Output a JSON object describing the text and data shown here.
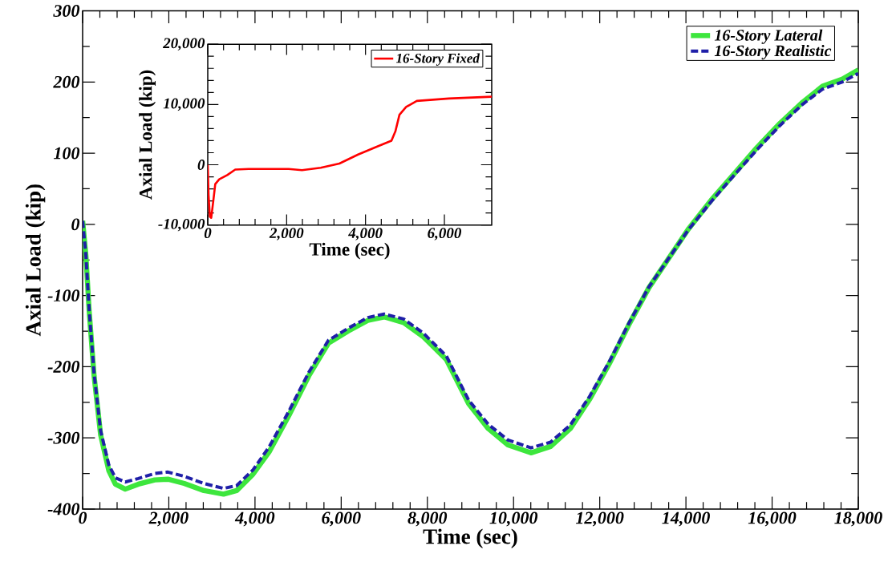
{
  "chart_data": [
    {
      "type": "line",
      "xlabel": "Time (sec)",
      "ylabel": "Axial Load (kip)",
      "xlim": [
        0,
        18000
      ],
      "ylim": [
        -400,
        300
      ],
      "xticks": [
        0,
        {
          "value": 2000,
          "label": "2,000"
        },
        {
          "value": 4000,
          "label": "4,000"
        },
        {
          "value": 6000,
          "label": "6,000"
        },
        {
          "value": 8000,
          "label": "8,000"
        },
        {
          "value": 10000,
          "label": "10,000"
        },
        {
          "value": 12000,
          "label": "12,000"
        },
        {
          "value": 14000,
          "label": "14,000"
        },
        {
          "value": 16000,
          "label": "16,000"
        },
        {
          "value": 18000,
          "label": "18,000"
        }
      ],
      "yticks": [
        -400,
        -300,
        -200,
        -100,
        0,
        100,
        200,
        300
      ],
      "grid": false,
      "legend": "top right",
      "x": [
        0,
        76,
        152,
        266,
        418,
        608,
        760,
        989,
        1293,
        1673,
        1977,
        2357,
        2814,
        3270,
        3574,
        3954,
        4335,
        4791,
        5247,
        5703,
        6160,
        6616,
        6996,
        7452,
        7909,
        8441,
        8958,
        9414,
        9871,
        10403,
        10859,
        11316,
        11772,
        12228,
        12684,
        13141,
        13597,
        14053,
        14586,
        15118,
        15650,
        16183,
        16715,
        17171,
        17627,
        18000
      ],
      "series": [
        {
          "name": "16-Story Lateral",
          "color": "#3de63d",
          "line_style": "solid",
          "values": [
            5,
            -44,
            -122,
            -213,
            -296,
            -346,
            -365,
            -372,
            -365,
            -359,
            -358,
            -364,
            -374,
            -379,
            -374,
            -351,
            -319,
            -268,
            -213,
            -167,
            -150,
            -135,
            -130,
            -138,
            -158,
            -190,
            -252,
            -287,
            -310,
            -321,
            -312,
            -287,
            -245,
            -195,
            -140,
            -89,
            -48,
            -7,
            34,
            71,
            108,
            142,
            172,
            194,
            204,
            217
          ]
        },
        {
          "name": "16-Story Realistic",
          "color": "#1f1fa8",
          "line_style": "dashed",
          "values": [
            5,
            -44,
            -120,
            -210,
            -290,
            -338,
            -356,
            -362,
            -357,
            -350,
            -348,
            -354,
            -364,
            -371,
            -367,
            -345,
            -312,
            -262,
            -208,
            -163,
            -146,
            -131,
            -126,
            -133,
            -153,
            -185,
            -247,
            -281,
            -303,
            -314,
            -306,
            -282,
            -241,
            -192,
            -138,
            -88,
            -48,
            -8,
            32,
            69,
            105,
            139,
            169,
            190,
            200,
            212
          ]
        }
      ]
    },
    {
      "type": "line",
      "xlabel": "Time (sec)",
      "ylabel": "Axial Load (kip)",
      "xlim": [
        0,
        7200
      ],
      "ylim": [
        -10000,
        20000
      ],
      "xticks": [
        0,
        {
          "value": 2000,
          "label": "2,000"
        },
        {
          "value": 4000,
          "label": "4,000"
        },
        {
          "value": 6000,
          "label": "6,000"
        }
      ],
      "yticks": [
        {
          "value": -10000,
          "label": "-10,000"
        },
        0,
        {
          "value": 10000,
          "label": "10,000"
        },
        {
          "value": 20000,
          "label": "20,000"
        }
      ],
      "grid": false,
      "legend": "top right",
      "x": [
        0,
        20,
        54,
        88,
        142,
        190,
        291,
        494,
        697,
        1036,
        2051,
        2390,
        2864,
        3338,
        3812,
        4286,
        4658,
        4760,
        4861,
        5030,
        5301,
        6113,
        7200
      ],
      "series": [
        {
          "name": "16-Story Fixed",
          "color": "#ff0000",
          "line_style": "solid",
          "values": [
            0,
            -5000,
            -8600,
            -8800,
            -5900,
            -3200,
            -2400,
            -1700,
            -800,
            -700,
            -700,
            -900,
            -500,
            200,
            1700,
            3000,
            4000,
            5600,
            8300,
            9600,
            10600,
            11000,
            11300
          ]
        }
      ]
    }
  ]
}
